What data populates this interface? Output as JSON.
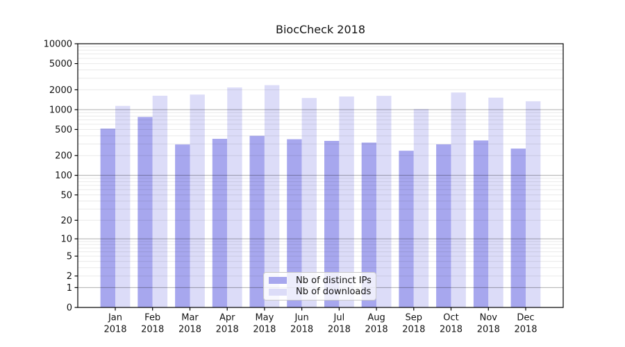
{
  "title": "BiocCheck 2018",
  "legend": {
    "items": [
      {
        "label": "Nb of distinct IPs",
        "color": "#a7a7ee"
      },
      {
        "label": "Nb of downloads",
        "color": "#dcdcf8"
      }
    ]
  },
  "y_axis": {
    "tick_labels": [
      "0",
      "1",
      "2",
      "5",
      "10",
      "20",
      "50",
      "100",
      "200",
      "500",
      "1000",
      "2000",
      "5000",
      "10000"
    ]
  },
  "x_axis": {
    "tick_labels": [
      "Jan 2018",
      "Feb 2018",
      "Mar 2018",
      "Apr 2018",
      "May 2018",
      "Jun 2018",
      "Jul 2018",
      "Aug 2018",
      "Sep 2018",
      "Oct 2018",
      "Nov 2018",
      "Dec 2018"
    ]
  },
  "chart_data": {
    "type": "bar",
    "title": "BiocCheck 2018",
    "categories": [
      "Jan 2018",
      "Feb 2018",
      "Mar 2018",
      "Apr 2018",
      "May 2018",
      "Jun 2018",
      "Jul 2018",
      "Aug 2018",
      "Sep 2018",
      "Oct 2018",
      "Nov 2018",
      "Dec 2018"
    ],
    "series": [
      {
        "name": "Nb of distinct IPs",
        "color": "#a7a7ee",
        "values": [
          515,
          775,
          295,
          360,
          400,
          355,
          335,
          315,
          237,
          297,
          340,
          256
        ]
      },
      {
        "name": "Nb of downloads",
        "color": "#dcdcf8",
        "values": [
          1140,
          1625,
          1690,
          2170,
          2350,
          1500,
          1585,
          1620,
          1020,
          1820,
          1520,
          1340
        ]
      }
    ],
    "yscale": "log1p",
    "ylim": [
      0,
      10000
    ],
    "yticks": [
      0,
      1,
      2,
      5,
      10,
      20,
      50,
      100,
      200,
      500,
      1000,
      2000,
      5000,
      10000
    ],
    "grid": true,
    "grid_major_at": [
      1,
      10,
      100,
      1000
    ],
    "legend_position": "lower center",
    "colors": {
      "grid_major": "#b0b0b0",
      "grid_minor": "#e8e8e8",
      "axis": "#000000",
      "text": "#111111",
      "background": "#ffffff"
    }
  }
}
